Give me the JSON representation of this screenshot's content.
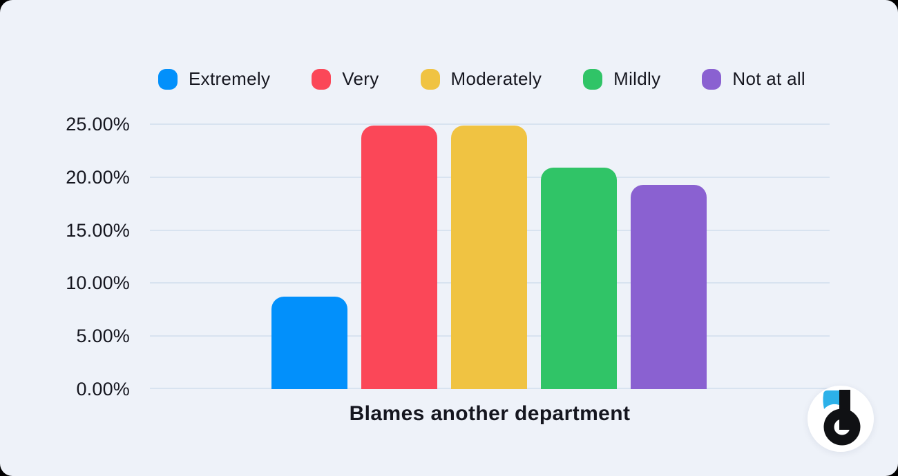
{
  "page": {
    "background": "#000000",
    "card_background": "#eef2f9"
  },
  "chart_data": {
    "type": "bar",
    "title": "",
    "xlabel": "Blames another department",
    "ylabel": "",
    "categories": [
      "Blames another department"
    ],
    "series": [
      {
        "name": "Extremely",
        "color": "#0290fb",
        "values": [
          8.7
        ]
      },
      {
        "name": "Very",
        "color": "#fb4758",
        "values": [
          24.9
        ]
      },
      {
        "name": "Moderately",
        "color": "#f0c342",
        "values": [
          24.9
        ]
      },
      {
        "name": "Mildly",
        "color": "#30c467",
        "values": [
          20.9
        ]
      },
      {
        "name": "Not at all",
        "color": "#8a61d1",
        "values": [
          19.3
        ]
      }
    ],
    "ylim": [
      0,
      25
    ],
    "ytick_step": 5,
    "ytick_labels": [
      "0.00%",
      "5.00%",
      "10.00%",
      "15.00%",
      "20.00%",
      "25.00%"
    ],
    "grid": true,
    "gridline_color": "#d8e3f0",
    "legend_position": "top",
    "text_color": "#15161f"
  },
  "logo": {
    "name": "displayr-logo",
    "letter": "d",
    "accent_color": "#2cb1e9",
    "letter_color": "#101114",
    "background": "#ffffff"
  }
}
